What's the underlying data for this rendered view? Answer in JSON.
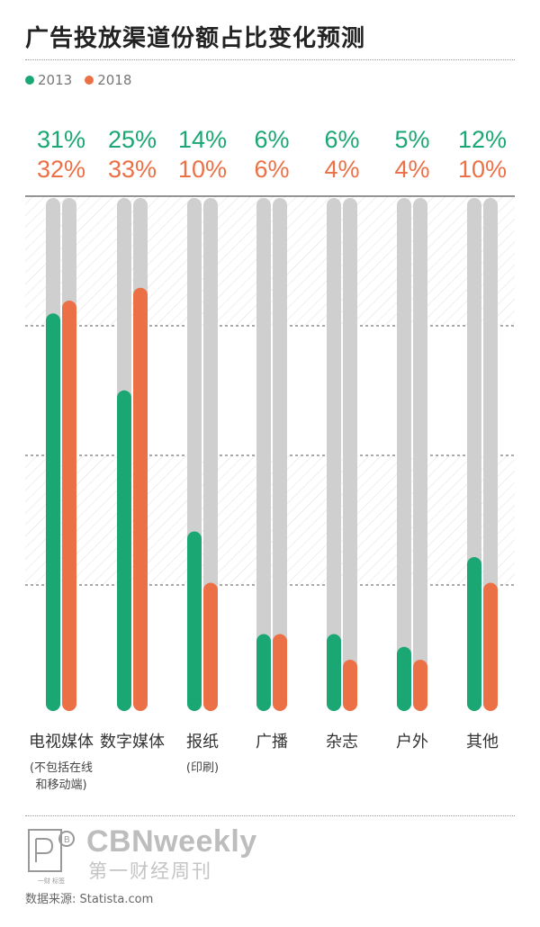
{
  "title": "广告投放渠道份额占比变化预测",
  "legend": [
    {
      "label": "2013",
      "color": "#1aa774"
    },
    {
      "label": "2018",
      "color": "#ec7046"
    }
  ],
  "colors": {
    "series_2013": "#1aa774",
    "series_2018": "#ec7046",
    "track": "#cfcfcf"
  },
  "chart_data": {
    "type": "bar",
    "title": "广告投放渠道份额占比变化预测",
    "categories": [
      "电视媒体",
      "数字媒体",
      "报纸",
      "广播",
      "杂志",
      "户外",
      "其他"
    ],
    "category_notes": [
      "(不包括在线\n和移动端)",
      "",
      "(印刷)",
      "",
      "",
      "",
      ""
    ],
    "series": [
      {
        "name": "2013",
        "values": [
          31,
          25,
          14,
          6,
          6,
          5,
          12
        ],
        "labels": [
          "31%",
          "25%",
          "14%",
          "6%",
          "6%",
          "5%",
          "12%"
        ]
      },
      {
        "name": "2018",
        "values": [
          32,
          33,
          10,
          6,
          4,
          4,
          10
        ],
        "labels": [
          "32%",
          "33%",
          "10%",
          "6%",
          "4%",
          "4%",
          "10%"
        ]
      }
    ],
    "ylim": [
      0,
      40
    ],
    "grid": true
  },
  "logo": {
    "en": "CBNweekly",
    "cn": "第一财经周刊",
    "mark_sub": "一财 标签"
  },
  "source": "数据来源: Statista.com"
}
